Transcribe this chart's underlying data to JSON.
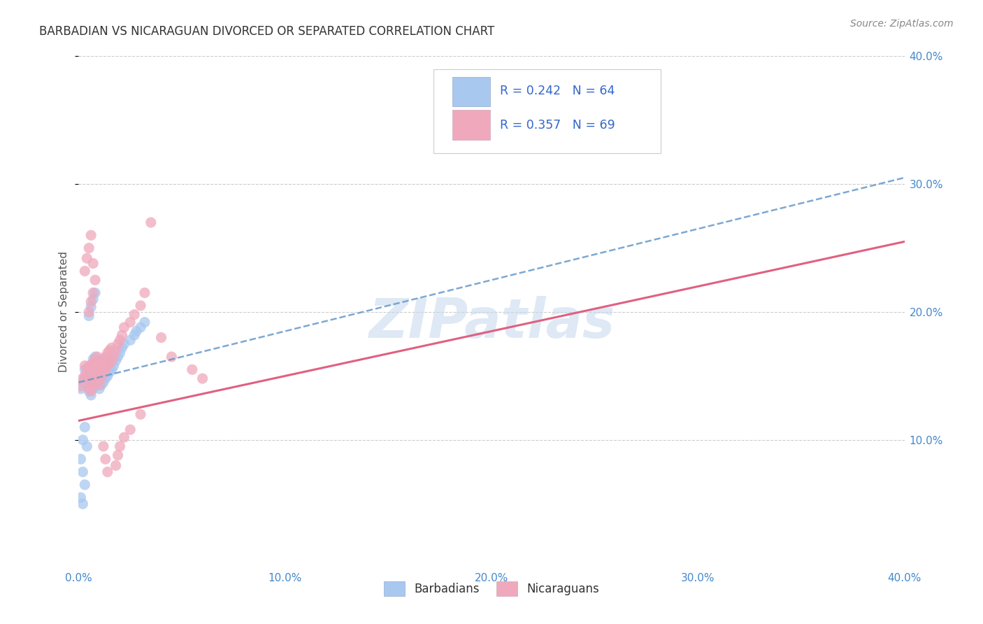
{
  "title": "BARBADIAN VS NICARAGUAN DIVORCED OR SEPARATED CORRELATION CHART",
  "source": "Source: ZipAtlas.com",
  "ylabel": "Divorced or Separated",
  "xlim": [
    0.0,
    0.4
  ],
  "ylim": [
    0.0,
    0.4
  ],
  "xticks": [
    0.0,
    0.1,
    0.2,
    0.3,
    0.4
  ],
  "yticks": [
    0.1,
    0.2,
    0.3,
    0.4
  ],
  "xtick_labels": [
    "0.0%",
    "10.0%",
    "20.0%",
    "30.0%",
    "40.0%"
  ],
  "ytick_labels": [
    "10.0%",
    "20.0%",
    "30.0%",
    "40.0%"
  ],
  "blue_R": 0.242,
  "blue_N": 64,
  "pink_R": 0.357,
  "pink_N": 69,
  "blue_color": "#a8c8f0",
  "pink_color": "#f0a8bc",
  "blue_line_color": "#6699cc",
  "pink_line_color": "#e06080",
  "legend_text_color": "#3366cc",
  "watermark": "ZIPatlas",
  "background_color": "#ffffff",
  "blue_trendline": [
    0.0,
    0.1,
    0.145,
    0.3
  ],
  "pink_trendline": [
    0.0,
    0.1,
    0.115,
    0.255
  ],
  "blue_scatter_x": [
    0.001,
    0.002,
    0.003,
    0.003,
    0.004,
    0.004,
    0.005,
    0.005,
    0.005,
    0.006,
    0.006,
    0.006,
    0.007,
    0.007,
    0.007,
    0.007,
    0.008,
    0.008,
    0.008,
    0.008,
    0.009,
    0.009,
    0.009,
    0.01,
    0.01,
    0.01,
    0.01,
    0.011,
    0.011,
    0.011,
    0.012,
    0.012,
    0.012,
    0.013,
    0.013,
    0.014,
    0.014,
    0.015,
    0.015,
    0.016,
    0.016,
    0.017,
    0.018,
    0.019,
    0.02,
    0.021,
    0.022,
    0.025,
    0.027,
    0.028,
    0.03,
    0.032,
    0.005,
    0.006,
    0.007,
    0.008,
    0.002,
    0.003,
    0.004,
    0.001,
    0.002,
    0.003,
    0.001,
    0.002
  ],
  "blue_scatter_y": [
    0.14,
    0.145,
    0.148,
    0.155,
    0.142,
    0.152,
    0.138,
    0.148,
    0.155,
    0.135,
    0.145,
    0.155,
    0.14,
    0.148,
    0.155,
    0.163,
    0.142,
    0.15,
    0.158,
    0.165,
    0.145,
    0.153,
    0.16,
    0.14,
    0.148,
    0.155,
    0.162,
    0.143,
    0.152,
    0.16,
    0.145,
    0.155,
    0.163,
    0.148,
    0.158,
    0.15,
    0.16,
    0.153,
    0.162,
    0.155,
    0.163,
    0.158,
    0.162,
    0.165,
    0.168,
    0.172,
    0.175,
    0.178,
    0.182,
    0.185,
    0.188,
    0.192,
    0.197,
    0.204,
    0.21,
    0.215,
    0.1,
    0.11,
    0.095,
    0.085,
    0.075,
    0.065,
    0.055,
    0.05
  ],
  "pink_scatter_x": [
    0.001,
    0.002,
    0.003,
    0.003,
    0.004,
    0.004,
    0.005,
    0.005,
    0.005,
    0.006,
    0.006,
    0.006,
    0.007,
    0.007,
    0.007,
    0.008,
    0.008,
    0.008,
    0.009,
    0.009,
    0.009,
    0.01,
    0.01,
    0.01,
    0.011,
    0.011,
    0.012,
    0.012,
    0.013,
    0.013,
    0.014,
    0.014,
    0.015,
    0.015,
    0.016,
    0.016,
    0.017,
    0.018,
    0.019,
    0.02,
    0.021,
    0.022,
    0.025,
    0.027,
    0.03,
    0.032,
    0.035,
    0.04,
    0.045,
    0.055,
    0.06,
    0.005,
    0.006,
    0.007,
    0.008,
    0.003,
    0.004,
    0.005,
    0.006,
    0.007,
    0.012,
    0.013,
    0.014,
    0.018,
    0.019,
    0.02,
    0.022,
    0.025,
    0.03
  ],
  "pink_scatter_y": [
    0.142,
    0.148,
    0.15,
    0.158,
    0.145,
    0.155,
    0.14,
    0.15,
    0.158,
    0.138,
    0.148,
    0.158,
    0.143,
    0.152,
    0.16,
    0.145,
    0.155,
    0.163,
    0.148,
    0.158,
    0.165,
    0.143,
    0.152,
    0.16,
    0.148,
    0.158,
    0.152,
    0.162,
    0.155,
    0.165,
    0.158,
    0.168,
    0.16,
    0.17,
    0.162,
    0.172,
    0.165,
    0.17,
    0.175,
    0.178,
    0.182,
    0.188,
    0.192,
    0.198,
    0.205,
    0.215,
    0.27,
    0.18,
    0.165,
    0.155,
    0.148,
    0.2,
    0.208,
    0.215,
    0.225,
    0.232,
    0.242,
    0.25,
    0.26,
    0.238,
    0.095,
    0.085,
    0.075,
    0.08,
    0.088,
    0.095,
    0.102,
    0.108,
    0.12
  ]
}
